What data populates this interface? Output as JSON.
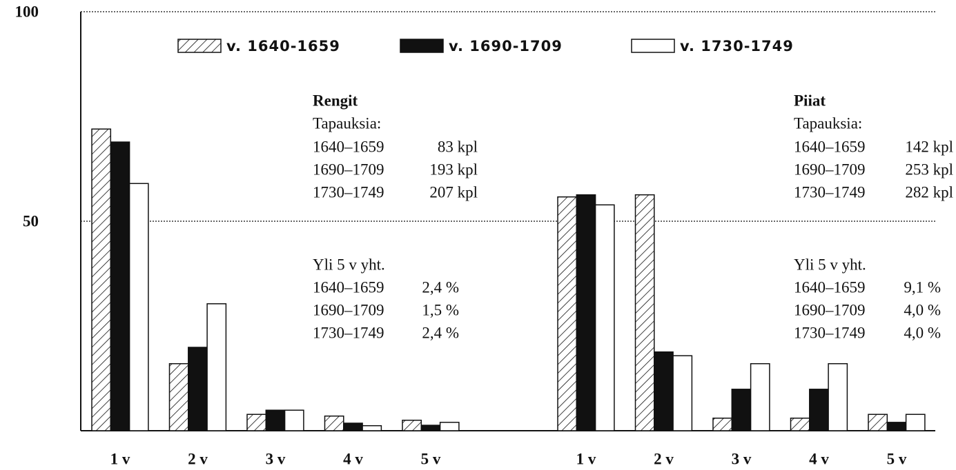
{
  "chart_data": [
    {
      "type": "bar",
      "ylim": [
        0,
        100
      ],
      "yticks": [
        50,
        100
      ],
      "grid": true,
      "categories": [
        "1 v",
        "2 v",
        "3 v",
        "4 v",
        "5 v"
      ],
      "series": [
        {
          "name": "v. 1640-1659",
          "color": "hatch",
          "values": [
            72.0,
            16.0,
            3.9,
            3.5,
            2.5
          ]
        },
        {
          "name": "v. 1690-1709",
          "color": "#111111",
          "values": [
            68.9,
            19.9,
            4.9,
            1.8,
            1.3
          ]
        },
        {
          "name": "v. 1730-1749",
          "color": "#ffffff",
          "values": [
            59.0,
            30.3,
            4.9,
            1.2,
            2.0
          ]
        }
      ],
      "annotation": {
        "title": "Rengit",
        "subtitle": "Tapauksia:",
        "rows": [
          [
            "1640–1659",
            "83 kpl"
          ],
          [
            "1690–1709",
            "193 kpl"
          ],
          [
            "1730–1749",
            "207 kpl"
          ]
        ],
        "note_title": "Yli 5 v yht.",
        "note_rows": [
          [
            "1640–1659",
            "2,4 %"
          ],
          [
            "1690–1709",
            "1,5 %"
          ],
          [
            "1730–1749",
            "2,4 %"
          ]
        ]
      }
    },
    {
      "type": "bar",
      "ylim": [
        0,
        100
      ],
      "categories": [
        "1 v",
        "2 v",
        "3 v",
        "4 v",
        "5 v"
      ],
      "series": [
        {
          "color": "hatch",
          "values": [
            55.8,
            56.3,
            3.0,
            3.0,
            3.9
          ]
        },
        {
          "color": "#111111",
          "values": [
            56.3,
            18.8,
            9.9,
            9.9,
            2.0
          ]
        },
        {
          "color": "#ffffff",
          "values": [
            53.9,
            17.9,
            16.0,
            16.0,
            3.9
          ]
        }
      ],
      "annotation": {
        "title": "Piiat",
        "subtitle": "Tapauksia:",
        "rows": [
          [
            "1640–1659",
            "142 kpl"
          ],
          [
            "1690–1709",
            "253 kpl"
          ],
          [
            "1730–1749",
            "282 kpl"
          ]
        ],
        "note_title": "Yli 5 v yht.",
        "note_rows": [
          [
            "1640–1659",
            "9,1 %"
          ],
          [
            "1690–1709",
            "4,0 %"
          ],
          [
            "1730–1749",
            "4,0 %"
          ]
        ]
      }
    }
  ]
}
